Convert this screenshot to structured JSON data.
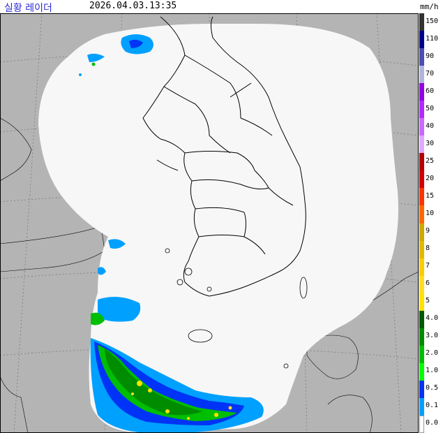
{
  "header": {
    "title": "실황 레이더",
    "timestamp": "2026.04.03.13:35",
    "unit": "mm/h"
  },
  "legend": {
    "levels": [
      {
        "label": "150",
        "color": "#333333"
      },
      {
        "label": "110",
        "color": "#000390"
      },
      {
        "label": "90",
        "color": "#4c4eb1"
      },
      {
        "label": "70",
        "color": "#b3b4de"
      },
      {
        "label": "60",
        "color": "#9300e4"
      },
      {
        "label": "50",
        "color": "#b329ff"
      },
      {
        "label": "40",
        "color": "#c969ff"
      },
      {
        "label": "30",
        "color": "#e0a9ff"
      },
      {
        "label": "25",
        "color": "#b40000"
      },
      {
        "label": "20",
        "color": "#d20000"
      },
      {
        "label": "15",
        "color": "#ff3300"
      },
      {
        "label": "10",
        "color": "#ff6600"
      },
      {
        "label": "9",
        "color": "#ccaa00"
      },
      {
        "label": "8",
        "color": "#e0b900"
      },
      {
        "label": "7",
        "color": "#f9cd00"
      },
      {
        "label": "6",
        "color": "#ffdc1f"
      },
      {
        "label": "5",
        "color": "#ffe100"
      },
      {
        "label": "4.0",
        "color": "#005a00"
      },
      {
        "label": "3.0",
        "color": "#008c00"
      },
      {
        "label": "2.0",
        "color": "#00be00"
      },
      {
        "label": "1.0",
        "color": "#00ff00"
      },
      {
        "label": "0.5",
        "color": "#0033f5"
      },
      {
        "label": "0.1",
        "color": "#00a0ff"
      },
      {
        "label": "0.0",
        "color": "#ffffff"
      }
    ]
  },
  "map": {
    "background_color": "#b4b4b4",
    "coverage_color": "#f7f7f7",
    "coastline_color": "#000000",
    "grid_color": "#7a7a7a"
  }
}
